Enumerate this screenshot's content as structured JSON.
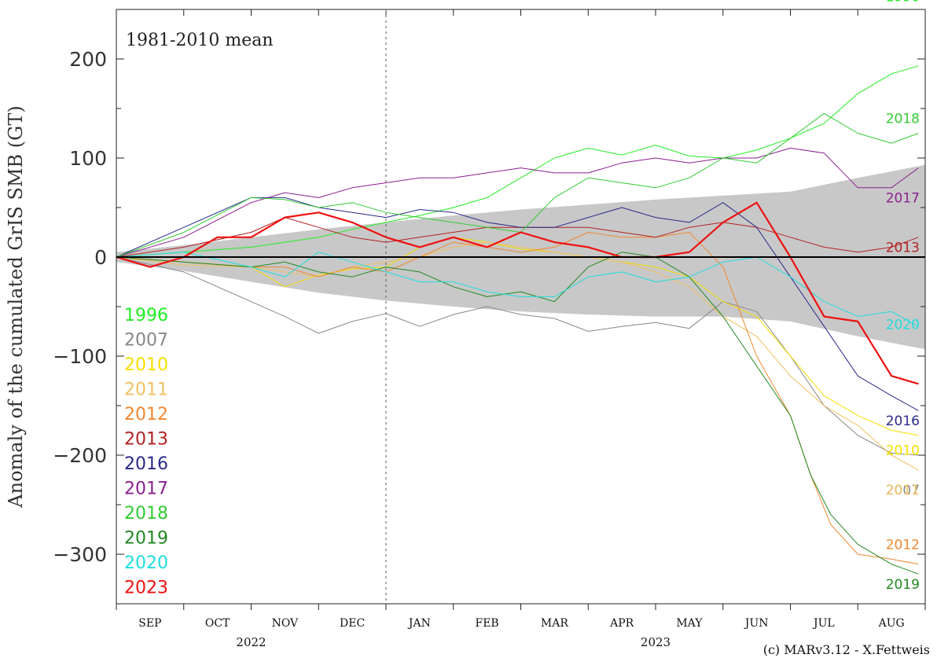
{
  "chart_data": {
    "type": "line",
    "annotation": "1981-2010 mean",
    "ylabel": "Anomaly of the cumulated GrIS SMB (GT)",
    "credit": "(c) MARv3.12 - X.Fettweis",
    "ylim": [
      -350,
      250
    ],
    "yticks": [
      200,
      100,
      0,
      -100,
      -200,
      -300
    ],
    "ytick_labels": [
      "200",
      "100",
      "0",
      "−100",
      "−200",
      "−300"
    ],
    "months": [
      "SEP",
      "OCT",
      "NOV",
      "DEC",
      "JAN",
      "FEB",
      "MAR",
      "APR",
      "MAY",
      "JUN",
      "JUL",
      "AUG"
    ],
    "years": [
      "2022",
      "2023"
    ],
    "xlim": [
      0,
      12
    ],
    "grid": false,
    "legend_placement": "left",
    "envelope": {
      "x": [
        0,
        1,
        2,
        3,
        4,
        5,
        6,
        7,
        8,
        9,
        10,
        11,
        12
      ],
      "upper": [
        5,
        12,
        20,
        28,
        35,
        42,
        48,
        53,
        58,
        62,
        66,
        80,
        93
      ],
      "lower": [
        -5,
        -14,
        -25,
        -36,
        -44,
        -50,
        -55,
        -58,
        -60,
        -60,
        -65,
        -80,
        -93
      ]
    },
    "series": [
      {
        "name": "1996",
        "color": "#22ee22",
        "width": 1,
        "end_label": true,
        "x": [
          0,
          1,
          2,
          2.5,
          3,
          3.5,
          4,
          4.5,
          5,
          5.5,
          6,
          6.5,
          7,
          7.5,
          8,
          8.5,
          9,
          9.5,
          10,
          10.5,
          11,
          11.5,
          11.9
        ],
        "y": [
          0,
          5,
          10,
          15,
          20,
          28,
          35,
          42,
          50,
          60,
          80,
          100,
          110,
          103,
          113,
          102,
          100,
          108,
          120,
          135,
          165,
          185,
          193
        ]
      },
      {
        "name": "2007",
        "color": "#888888",
        "width": 1,
        "end_label": true,
        "x": [
          0,
          1,
          2,
          2.5,
          3,
          3.5,
          4,
          4.5,
          5,
          5.5,
          6,
          6.5,
          7,
          7.5,
          8,
          8.5,
          9,
          9.5,
          10,
          10.5,
          11,
          11.5,
          11.9
        ],
        "y": [
          0,
          -15,
          -45,
          -60,
          -77,
          -65,
          -57,
          -70,
          -58,
          -50,
          -58,
          -62,
          -75,
          -70,
          -66,
          -72,
          -45,
          -55,
          -100,
          -150,
          -180,
          -198,
          -200
        ]
      },
      {
        "name": "2010",
        "color": "#f5e000",
        "width": 1,
        "end_label": true,
        "x": [
          0,
          1,
          2,
          2.5,
          3,
          3.5,
          4,
          4.5,
          5,
          5.5,
          6,
          6.5,
          7,
          7.5,
          8,
          8.5,
          9,
          9.5,
          10,
          10.5,
          11,
          11.5,
          11.9
        ],
        "y": [
          0,
          -5,
          -10,
          -30,
          -18,
          -12,
          -10,
          10,
          20,
          15,
          8,
          5,
          0,
          -5,
          -10,
          -20,
          -45,
          -60,
          -100,
          -140,
          -160,
          -175,
          -180
        ]
      },
      {
        "name": "2011",
        "color": "#f0c060",
        "width": 1,
        "end_label": true,
        "x": [
          0,
          1,
          2,
          2.5,
          3,
          3.5,
          4,
          4.5,
          5,
          5.5,
          6,
          6.5,
          7,
          7.5,
          8,
          8.5,
          9,
          9.5,
          10,
          10.5,
          11,
          11.5,
          11.9
        ],
        "y": [
          0,
          -8,
          -10,
          -15,
          -20,
          -10,
          -5,
          0,
          10,
          15,
          10,
          5,
          0,
          -5,
          -15,
          -30,
          -60,
          -80,
          -120,
          -150,
          -170,
          -200,
          -215
        ]
      },
      {
        "name": "2012",
        "color": "#f08830",
        "width": 1,
        "end_label": true,
        "x": [
          0,
          1,
          2,
          2.5,
          3,
          3.5,
          4,
          4.5,
          5,
          5.5,
          6,
          6.5,
          7,
          7.5,
          8,
          8.5,
          9,
          9.5,
          10,
          10.3,
          10.6,
          11,
          11.5,
          11.9
        ],
        "y": [
          0,
          -5,
          -10,
          -10,
          -20,
          -10,
          -15,
          0,
          15,
          10,
          5,
          10,
          25,
          20,
          20,
          25,
          -10,
          -100,
          -160,
          -220,
          -270,
          -300,
          -305,
          -310
        ]
      },
      {
        "name": "2013",
        "color": "#b22222",
        "width": 1,
        "end_label": true,
        "x": [
          0,
          1,
          2,
          2.5,
          3,
          3.5,
          4,
          4.5,
          5,
          5.5,
          6,
          6.5,
          7,
          7.5,
          8,
          8.5,
          9,
          9.5,
          10,
          10.5,
          11,
          11.5,
          11.9
        ],
        "y": [
          0,
          10,
          25,
          40,
          30,
          20,
          15,
          20,
          25,
          30,
          30,
          30,
          30,
          25,
          20,
          30,
          35,
          30,
          20,
          10,
          5,
          10,
          20
        ]
      },
      {
        "name": "2016",
        "color": "#2a2a8a",
        "width": 1,
        "end_label": true,
        "x": [
          0,
          1,
          2,
          2.5,
          3,
          3.5,
          4,
          4.5,
          5,
          5.5,
          6,
          6.5,
          7,
          7.5,
          8,
          8.5,
          9,
          9.5,
          10,
          10.5,
          11,
          11.5,
          11.9
        ],
        "y": [
          0,
          30,
          60,
          60,
          50,
          45,
          40,
          48,
          45,
          35,
          30,
          30,
          40,
          50,
          40,
          35,
          55,
          30,
          -20,
          -70,
          -120,
          -140,
          -155
        ]
      },
      {
        "name": "2017",
        "color": "#8a2090",
        "width": 1,
        "end_label": true,
        "x": [
          0,
          1,
          2,
          2.5,
          3,
          3.5,
          4,
          4.5,
          5,
          5.5,
          6,
          6.5,
          7,
          7.5,
          8,
          8.5,
          9,
          9.5,
          10,
          10.5,
          11,
          11.5,
          11.9
        ],
        "y": [
          0,
          20,
          55,
          65,
          60,
          70,
          75,
          80,
          80,
          85,
          90,
          85,
          85,
          95,
          100,
          95,
          100,
          100,
          110,
          105,
          70,
          70,
          90
        ]
      },
      {
        "name": "2018",
        "color": "#33cc33",
        "width": 1,
        "end_label": true,
        "x": [
          0,
          1,
          2,
          2.5,
          3,
          3.5,
          4,
          4.5,
          5,
          5.5,
          6,
          6.5,
          7,
          7.5,
          8,
          8.5,
          9,
          9.5,
          10,
          10.5,
          11,
          11.5,
          11.9
        ],
        "y": [
          0,
          25,
          60,
          58,
          50,
          55,
          45,
          40,
          35,
          30,
          25,
          60,
          80,
          75,
          70,
          80,
          100,
          95,
          120,
          145,
          125,
          115,
          125
        ]
      },
      {
        "name": "2019",
        "color": "#228822",
        "width": 1,
        "end_label": true,
        "x": [
          0,
          1,
          2,
          2.5,
          3,
          3.5,
          4,
          4.5,
          5,
          5.5,
          6,
          6.5,
          7,
          7.5,
          8,
          8.5,
          9,
          9.5,
          10,
          10.3,
          10.6,
          11,
          11.5,
          11.9
        ],
        "y": [
          0,
          -5,
          -10,
          -5,
          -15,
          -20,
          -10,
          -15,
          -30,
          -40,
          -35,
          -45,
          -10,
          5,
          0,
          -20,
          -60,
          -110,
          -160,
          -220,
          -260,
          -290,
          -310,
          -320
        ]
      },
      {
        "name": "2020",
        "color": "#22dddd",
        "width": 1,
        "end_label": true,
        "x": [
          0,
          1,
          2,
          2.5,
          3,
          3.5,
          4,
          4.5,
          5,
          5.5,
          6,
          6.5,
          7,
          7.5,
          8,
          8.5,
          9,
          9.5,
          10,
          10.5,
          11,
          11.5,
          11.9
        ],
        "y": [
          0,
          5,
          -10,
          -20,
          5,
          -5,
          -15,
          -25,
          -25,
          -35,
          -40,
          -40,
          -20,
          -15,
          -25,
          -20,
          -5,
          0,
          -20,
          -45,
          -60,
          -55,
          -70
        ]
      },
      {
        "name": "2023",
        "color": "#ee1111",
        "width": 2.2,
        "end_label": false,
        "x": [
          0,
          0.5,
          1,
          1.5,
          2,
          2.5,
          3,
          3.5,
          4,
          4.5,
          5,
          5.5,
          6,
          6.5,
          7,
          7.5,
          8,
          8.5,
          9,
          9.5,
          10,
          10.5,
          11,
          11.5,
          11.9
        ],
        "y": [
          0,
          -10,
          0,
          20,
          20,
          40,
          45,
          35,
          20,
          10,
          20,
          10,
          25,
          15,
          10,
          0,
          0,
          5,
          35,
          55,
          0,
          -60,
          -65,
          -120,
          -128
        ]
      }
    ]
  }
}
